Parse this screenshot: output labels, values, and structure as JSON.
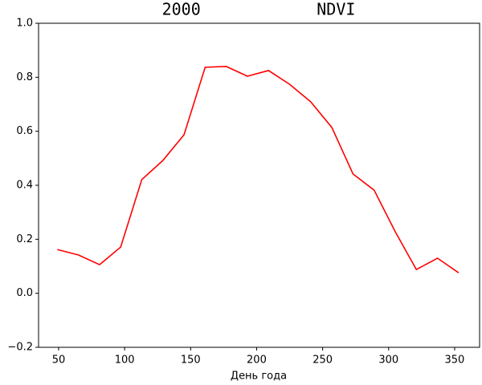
{
  "chart_data": {
    "type": "line",
    "title": "2000            NDVI",
    "x_label": "День года",
    "x": [
      49,
      65,
      81,
      97,
      113,
      129,
      145,
      161,
      177,
      193,
      209,
      225,
      241,
      257,
      273,
      289,
      305,
      321,
      337,
      353
    ],
    "series": [
      {
        "color": "#ff0000",
        "values": [
          0.162,
          0.142,
          0.106,
          0.171,
          0.421,
          0.492,
          0.587,
          0.837,
          0.84,
          0.804,
          0.825,
          0.774,
          0.709,
          0.614,
          0.442,
          0.382,
          0.228,
          0.088,
          0.13,
          0.076
        ]
      }
    ],
    "xlim": [
      34.8,
      368.9
    ],
    "xticks": [
      50,
      100,
      150,
      200,
      250,
      300,
      350
    ],
    "ylim": [
      -0.2,
      1.0
    ],
    "yticks": [
      {
        "value": -0.2,
        "label": "−0.2"
      },
      {
        "value": 0,
        "label": "0.0"
      },
      {
        "value": 0.2,
        "label": "0.2"
      },
      {
        "value": 0.4,
        "label": "0.4"
      },
      {
        "value": 0.6,
        "label": "0.6"
      },
      {
        "value": 0.8,
        "label": "0.8"
      },
      {
        "value": 1.0,
        "label": "1.0"
      }
    ]
  }
}
